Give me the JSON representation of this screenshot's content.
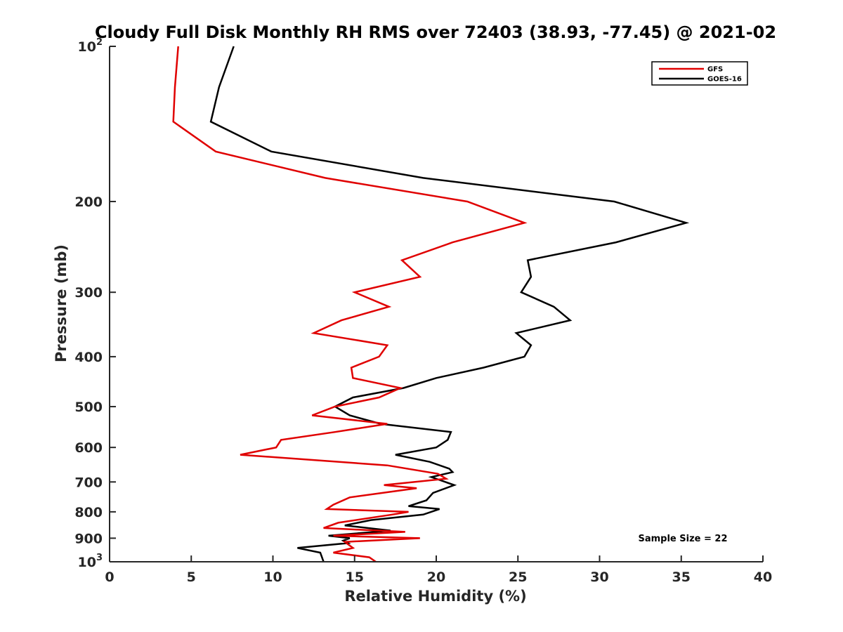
{
  "chart_data": {
    "type": "line",
    "title": "Cloudy Full Disk Monthly RH RMS over 72403 (38.93, -77.45) @ 2021-02",
    "xlabel": "Relative Humidity (%)",
    "ylabel": "Pressure (mb)",
    "xlim": [
      0,
      40
    ],
    "ylim": [
      100,
      1000
    ],
    "y_scale": "log",
    "y_reversed": true,
    "grid": false,
    "legend_position": "top-right",
    "x_ticks": [
      0,
      5,
      10,
      15,
      20,
      25,
      30,
      35,
      40
    ],
    "y_ticks": [
      {
        "value": 100,
        "base": "10",
        "exp": "2"
      },
      {
        "value": 200,
        "label": "200"
      },
      {
        "value": 300,
        "label": "300"
      },
      {
        "value": 400,
        "label": "400"
      },
      {
        "value": 500,
        "label": "500"
      },
      {
        "value": 600,
        "label": "600"
      },
      {
        "value": 700,
        "label": "700"
      },
      {
        "value": 800,
        "label": "800"
      },
      {
        "value": 900,
        "label": "900"
      },
      {
        "value": 1000,
        "base": "10",
        "exp": "3"
      }
    ],
    "series": [
      {
        "name": "GFS",
        "color": "#e00000",
        "points": [
          [
            4.2,
            100
          ],
          [
            4.0,
            120
          ],
          [
            3.9,
            140
          ],
          [
            6.5,
            160
          ],
          [
            13.2,
            180
          ],
          [
            21.9,
            200
          ],
          [
            25.4,
            220
          ],
          [
            21.0,
            240
          ],
          [
            17.9,
            260
          ],
          [
            19.0,
            280
          ],
          [
            15.0,
            300
          ],
          [
            17.1,
            320
          ],
          [
            14.2,
            340
          ],
          [
            12.5,
            360
          ],
          [
            17.0,
            380
          ],
          [
            16.5,
            400
          ],
          [
            14.8,
            420
          ],
          [
            14.9,
            440
          ],
          [
            17.8,
            460
          ],
          [
            16.5,
            480
          ],
          [
            13.8,
            500
          ],
          [
            12.4,
            520
          ],
          [
            17.0,
            540
          ],
          [
            13.8,
            560
          ],
          [
            10.5,
            580
          ],
          [
            10.2,
            600
          ],
          [
            8.0,
            620
          ],
          [
            17.0,
            650
          ],
          [
            20.1,
            675
          ],
          [
            20.6,
            690
          ],
          [
            16.8,
            710
          ],
          [
            18.8,
            720
          ],
          [
            14.7,
            750
          ],
          [
            13.7,
            775
          ],
          [
            13.3,
            790
          ],
          [
            18.3,
            800
          ],
          [
            17.3,
            810
          ],
          [
            14.0,
            840
          ],
          [
            13.1,
            860
          ],
          [
            18.1,
            875
          ],
          [
            13.7,
            890
          ],
          [
            19.0,
            900
          ],
          [
            14.4,
            915
          ],
          [
            14.9,
            940
          ],
          [
            13.7,
            960
          ],
          [
            15.9,
            980
          ],
          [
            16.3,
            1000
          ]
        ]
      },
      {
        "name": "GOES-16",
        "color": "#000000",
        "points": [
          [
            7.6,
            100
          ],
          [
            6.7,
            120
          ],
          [
            6.2,
            140
          ],
          [
            9.9,
            160
          ],
          [
            19.2,
            180
          ],
          [
            30.9,
            200
          ],
          [
            35.3,
            220
          ],
          [
            31.0,
            240
          ],
          [
            25.6,
            260
          ],
          [
            25.8,
            280
          ],
          [
            25.2,
            300
          ],
          [
            27.2,
            320
          ],
          [
            28.2,
            340
          ],
          [
            24.9,
            360
          ],
          [
            25.8,
            380
          ],
          [
            25.4,
            400
          ],
          [
            22.9,
            420
          ],
          [
            20.0,
            440
          ],
          [
            18.0,
            460
          ],
          [
            14.9,
            480
          ],
          [
            13.8,
            500
          ],
          [
            14.7,
            520
          ],
          [
            16.6,
            540
          ],
          [
            20.9,
            560
          ],
          [
            20.7,
            580
          ],
          [
            20.0,
            600
          ],
          [
            17.5,
            620
          ],
          [
            19.6,
            640
          ],
          [
            20.8,
            660
          ],
          [
            21.0,
            670
          ],
          [
            19.7,
            685
          ],
          [
            21.1,
            710
          ],
          [
            19.8,
            735
          ],
          [
            19.4,
            760
          ],
          [
            18.3,
            780
          ],
          [
            20.2,
            790
          ],
          [
            19.2,
            810
          ],
          [
            16.0,
            830
          ],
          [
            14.4,
            850
          ],
          [
            17.2,
            870
          ],
          [
            13.4,
            890
          ],
          [
            14.7,
            900
          ],
          [
            14.3,
            910
          ],
          [
            14.6,
            920
          ],
          [
            11.5,
            940
          ],
          [
            12.9,
            960
          ],
          [
            13.0,
            980
          ],
          [
            13.1,
            1000
          ]
        ]
      }
    ],
    "annotation": "Sample Size = 22"
  }
}
